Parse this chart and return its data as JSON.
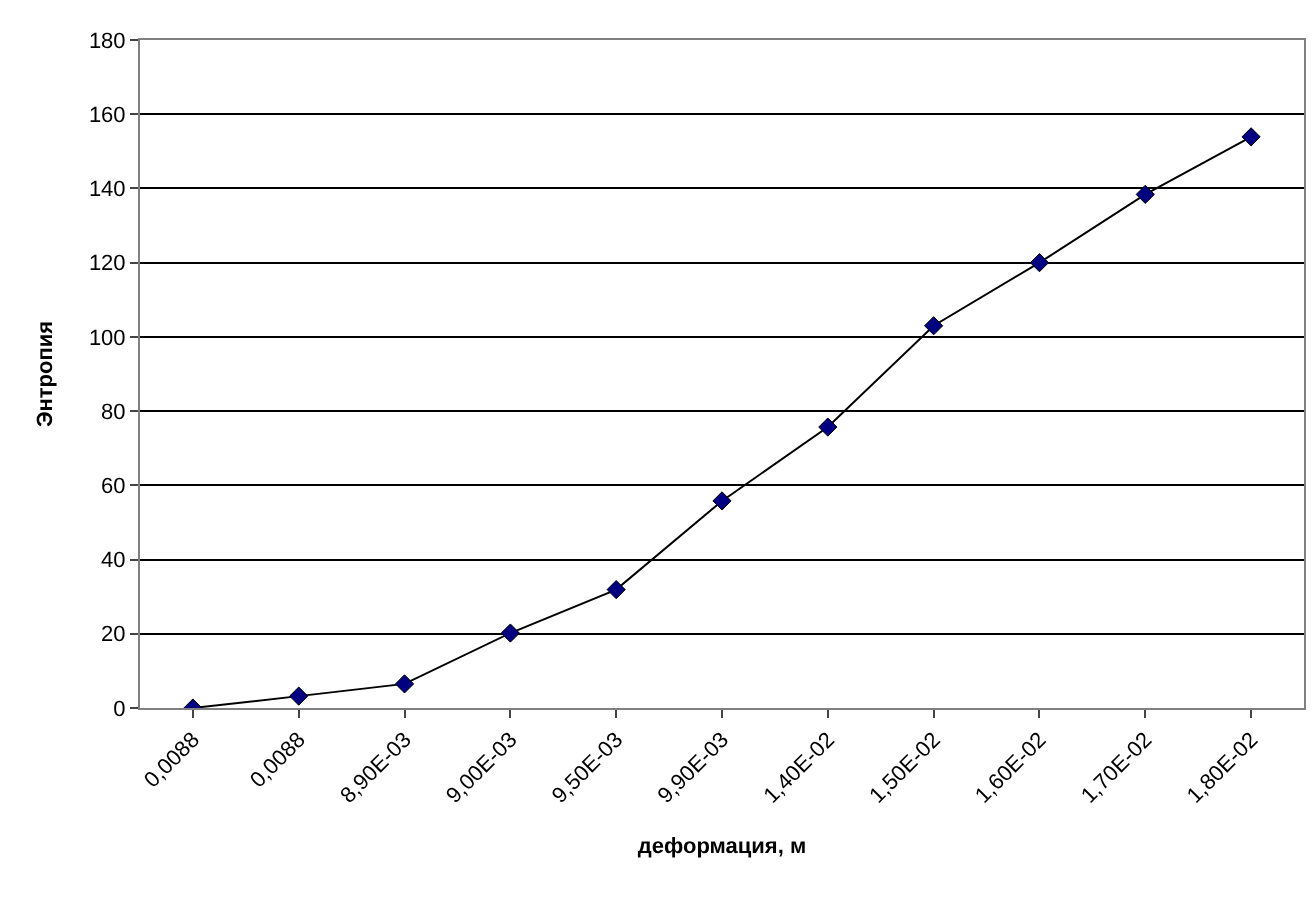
{
  "chart_data": {
    "type": "line",
    "xlabel": "деформация, м",
    "ylabel": "Энтропия",
    "categories": [
      "0,0088",
      "0,0088",
      "8,90E-03",
      "9,00E-03",
      "9,50E-03",
      "9,90E-03",
      "1,40E-02",
      "1,50E-02",
      "1,60E-02",
      "1,70E-02",
      "1,80E-02"
    ],
    "series": [
      {
        "color": "#000080",
        "values": [
          0,
          3.2,
          6.5,
          20.2,
          31.9,
          55.8,
          75.7,
          103,
          120,
          138.4,
          153.9
        ]
      }
    ],
    "ylim": [
      0,
      180
    ],
    "yticks": [
      0,
      20,
      40,
      60,
      80,
      100,
      120,
      140,
      160,
      180
    ],
    "grid": "y",
    "marker": "diamond",
    "line_style": "solid"
  }
}
